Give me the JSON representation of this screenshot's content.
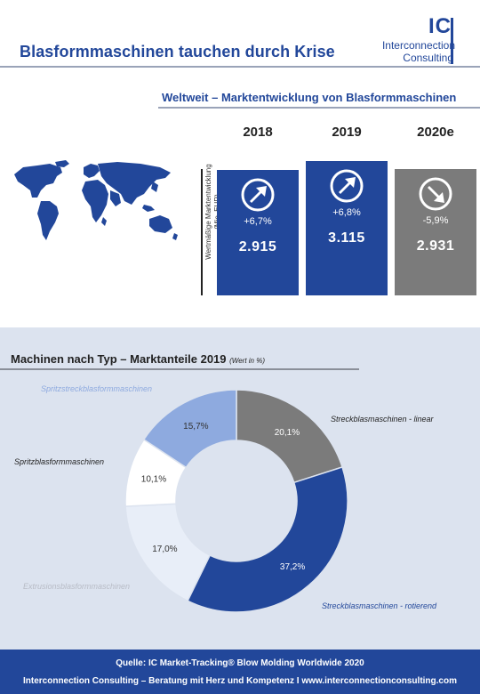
{
  "header": {
    "title": "Blasformmaschinen tauchen durch Krise",
    "logo_letters": "IC",
    "logo_line1": "Interconnection",
    "logo_line2": "Consulting"
  },
  "market_section": {
    "title": "Weltweit – Marktentwicklung von Blasformmaschinen",
    "ylabel_line1": "Wertmäßige Marktentwicklung",
    "ylabel_line2": "(Mio. EUR)"
  },
  "types_section": {
    "title": "Machinen nach Typ – Marktanteile 2019",
    "note": "(Wert in %)"
  },
  "footer": {
    "source": "Quelle: IC Market-Tracking® Blow Molding Worldwide 2020",
    "tagline": "Interconnection Consulting – Beratung mit Herz und Kompetenz  I  www.interconnectionconsulting.com"
  },
  "colors": {
    "brand_blue": "#22479a",
    "grey_bar": "#7b7b7b",
    "light_blue": "#8eaadf",
    "pale": "#e8eef8",
    "white_slice": "#ffffff"
  },
  "chart_data": [
    {
      "type": "bar",
      "categories": [
        "2018",
        "2019",
        "2020e"
      ],
      "values": [
        2915,
        3115,
        2931
      ],
      "value_labels": [
        "2.915",
        "3.115",
        "2.931"
      ],
      "growth_labels": [
        "+6,7%",
        "+6,8%",
        "-5,9%"
      ],
      "trend_icons": [
        "arrow-up-right-icon",
        "arrow-up-right-icon",
        "arrow-down-right-icon"
      ],
      "bar_colors": [
        "#22479a",
        "#22479a",
        "#7b7b7b"
      ],
      "ylabel": "Wertmäßige Marktentwicklung (Mio. EUR)",
      "ylim": [
        0,
        3115
      ]
    },
    {
      "type": "pie",
      "subtype": "donut",
      "slices": [
        {
          "label": "Streckblasmaschinen - linear",
          "value": 20.1,
          "value_label": "20,1%",
          "color": "#7b7b7b",
          "label_color": "#222222"
        },
        {
          "label": "Streckblasmaschinen - rotierend",
          "value": 37.2,
          "value_label": "37,2%",
          "color": "#22479a",
          "label_color": "#22479a"
        },
        {
          "label": "Extrusionsblasformmaschinen",
          "value": 17.0,
          "value_label": "17,0%",
          "color": "#e8eef8",
          "label_color": "#b8bcc6"
        },
        {
          "label": "Spritzblasformmaschinen",
          "value": 10.1,
          "value_label": "10,1%",
          "color": "#ffffff",
          "label_color": "#222222"
        },
        {
          "label": "Spritzstreckblasformmaschinen",
          "value": 15.7,
          "value_label": "15,7%",
          "color": "#8eaadf",
          "label_color": "#8eaadf"
        }
      ]
    }
  ]
}
